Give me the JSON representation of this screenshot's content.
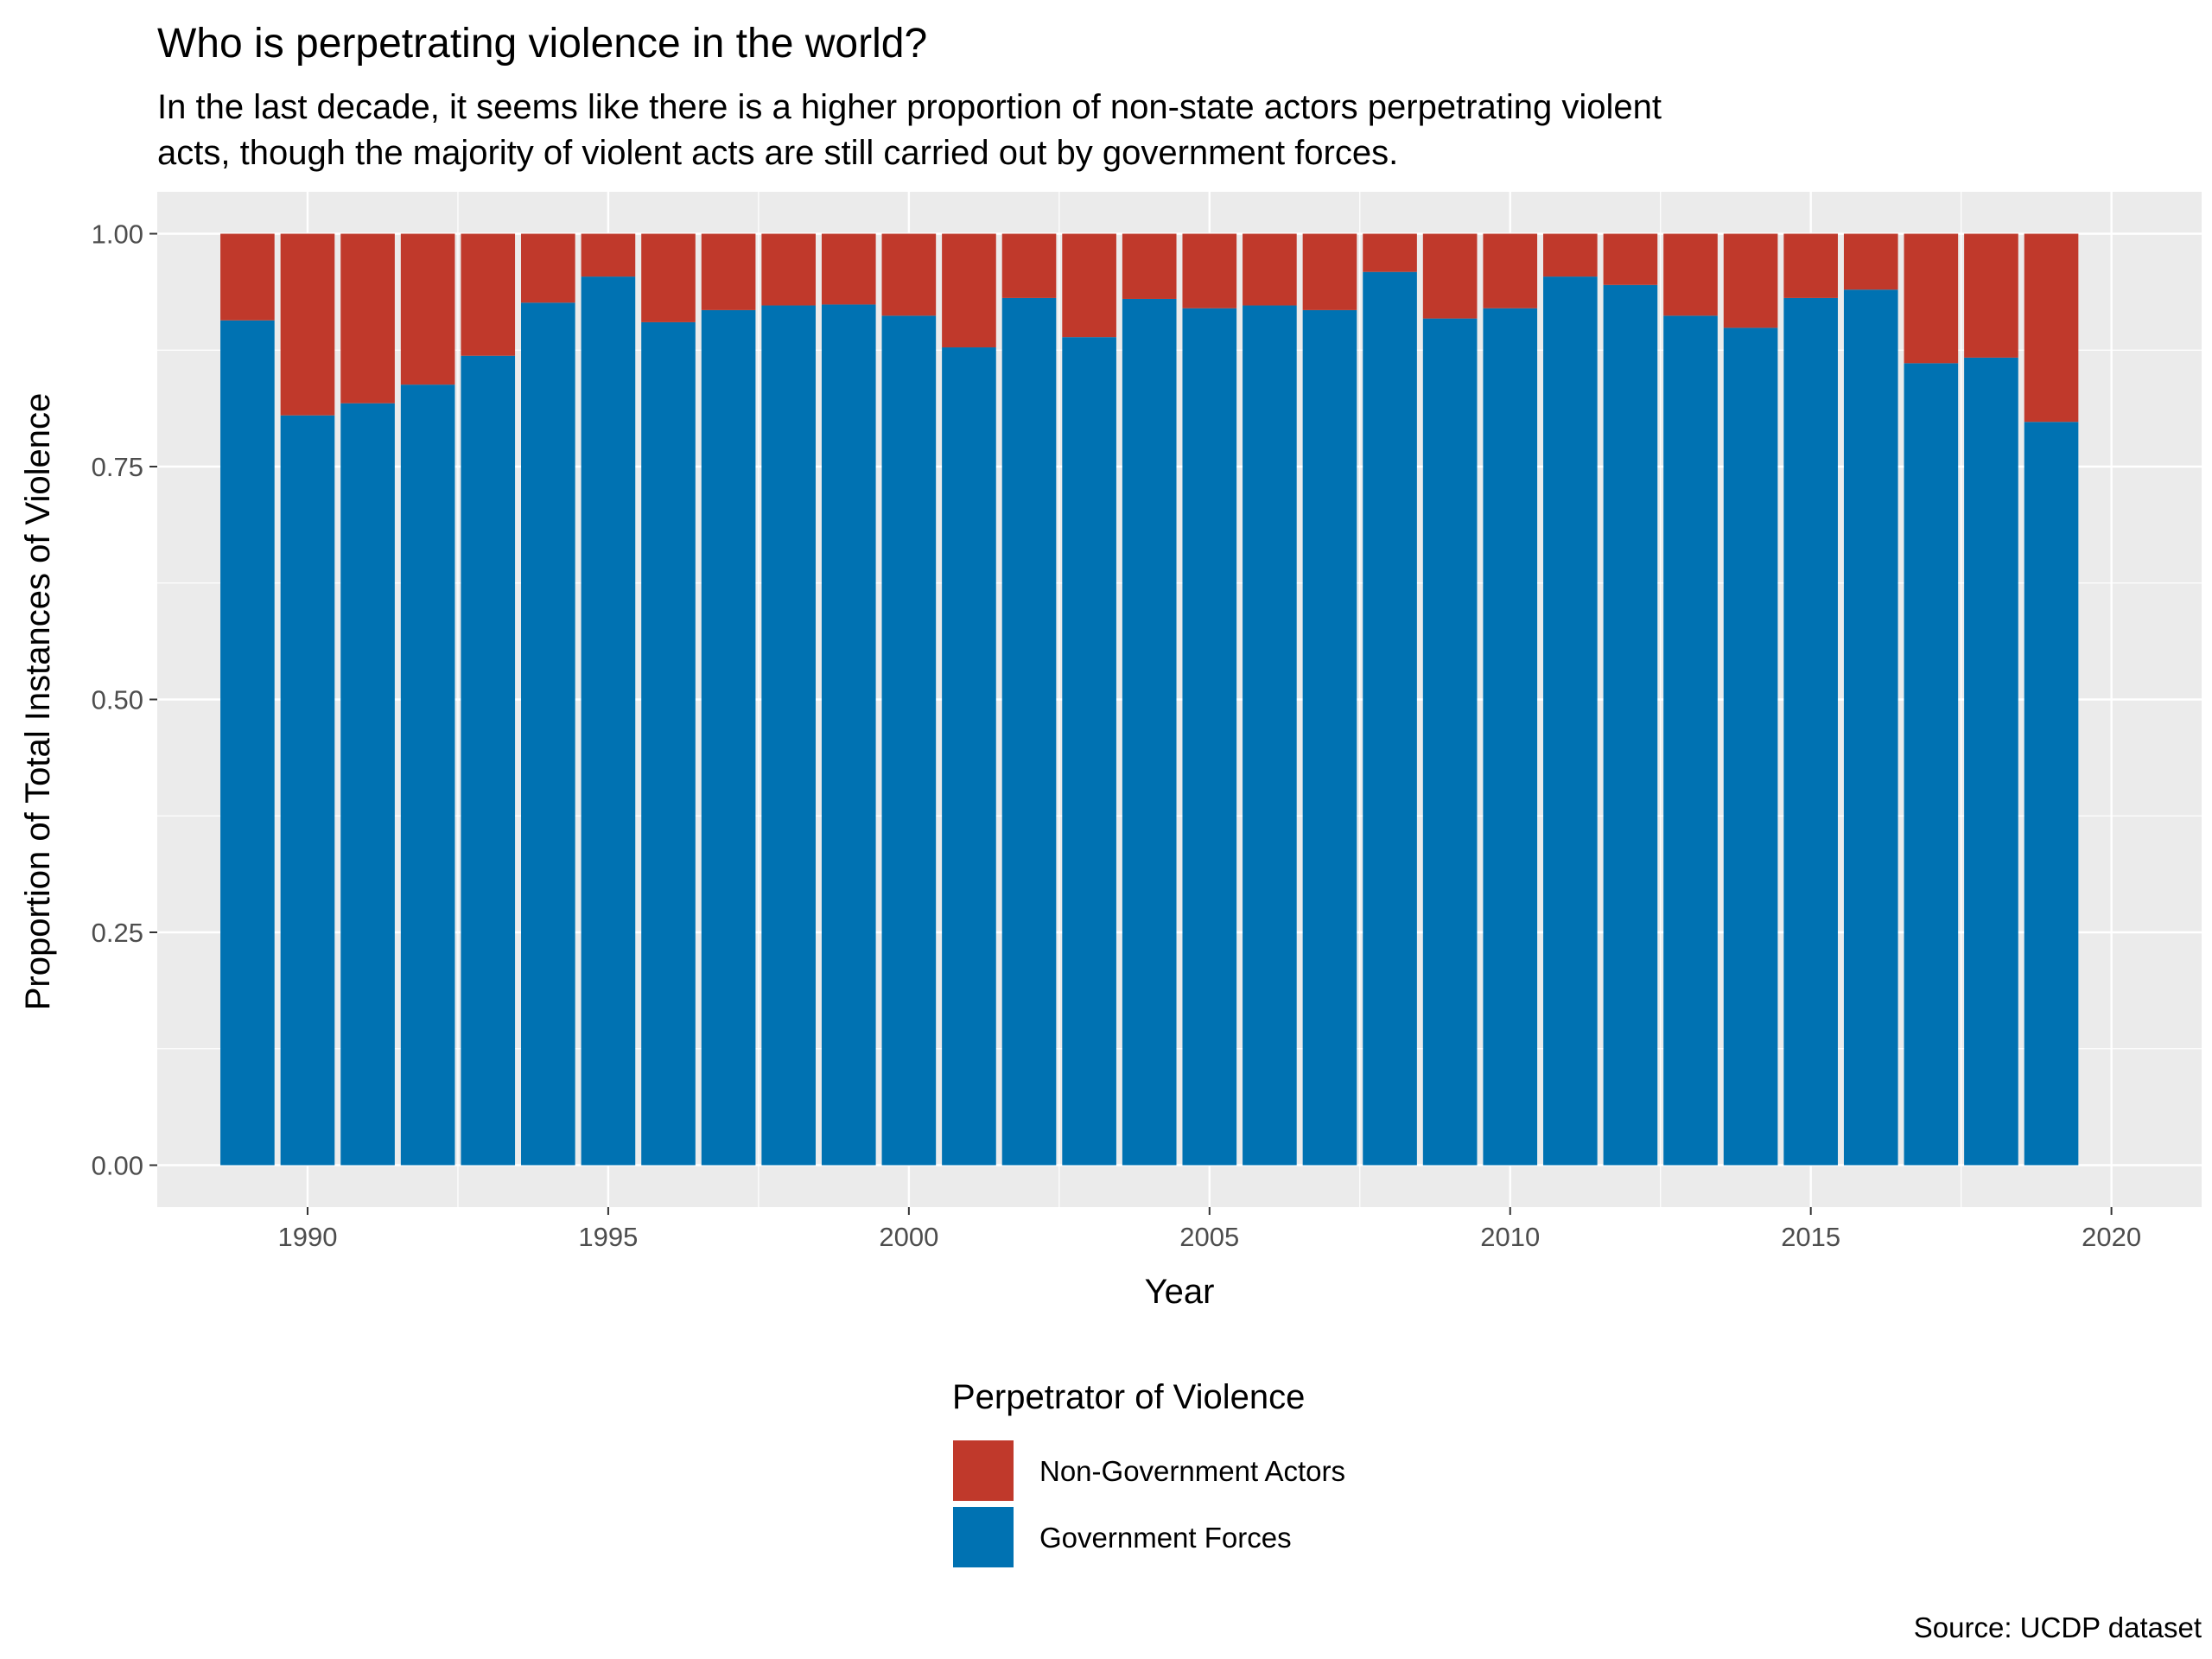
{
  "chart_data": {
    "type": "bar",
    "stacked": true,
    "title": "Who is perpetrating violence in the world?",
    "subtitle": [
      "In the last decade, it seems like there is a higher proportion of non-state actors perpetrating violent",
      "acts, though the majority of violent acts are still carried out by government forces."
    ],
    "xlabel": "Year",
    "ylabel": "Proportion of Total Instances of Violence",
    "caption": "Source: UCDP dataset",
    "x": [
      1989,
      1990,
      1991,
      1992,
      1993,
      1994,
      1995,
      1996,
      1997,
      1998,
      1999,
      2000,
      2001,
      2002,
      2003,
      2004,
      2005,
      2006,
      2007,
      2008,
      2009,
      2010,
      2011,
      2012,
      2013,
      2014,
      2015,
      2016,
      2017,
      2018,
      2019
    ],
    "xlim": [
      1987.5,
      2021.5
    ],
    "ylim": [
      -0.045,
      1.045
    ],
    "x_ticks": [
      "1990",
      "1995",
      "2000",
      "2005",
      "2010",
      "2015",
      "2020"
    ],
    "y_ticks": [
      "0.00",
      "0.25",
      "0.50",
      "0.75",
      "1.00"
    ],
    "grid": true,
    "legend_title": "Perpetrator of Violence",
    "legend_position": "bottom",
    "series": [
      {
        "name": "Government Forces",
        "color": "#0072b2",
        "values": [
          0.907,
          0.805,
          0.818,
          0.838,
          0.869,
          0.926,
          0.954,
          0.905,
          0.918,
          0.923,
          0.924,
          0.912,
          0.878,
          0.931,
          0.889,
          0.93,
          0.92,
          0.923,
          0.918,
          0.959,
          0.909,
          0.92,
          0.954,
          0.945,
          0.912,
          0.899,
          0.931,
          0.94,
          0.861,
          0.867,
          0.798
        ]
      },
      {
        "name": "Non-Government Actors",
        "color": "#c0392b",
        "values": [
          0.093,
          0.195,
          0.182,
          0.162,
          0.131,
          0.074,
          0.046,
          0.095,
          0.082,
          0.077,
          0.076,
          0.088,
          0.122,
          0.069,
          0.111,
          0.07,
          0.08,
          0.077,
          0.082,
          0.041,
          0.091,
          0.08,
          0.046,
          0.055,
          0.088,
          0.101,
          0.069,
          0.06,
          0.139,
          0.133,
          0.202
        ]
      }
    ],
    "legend_order": [
      "Non-Government Actors",
      "Government Forces"
    ]
  }
}
